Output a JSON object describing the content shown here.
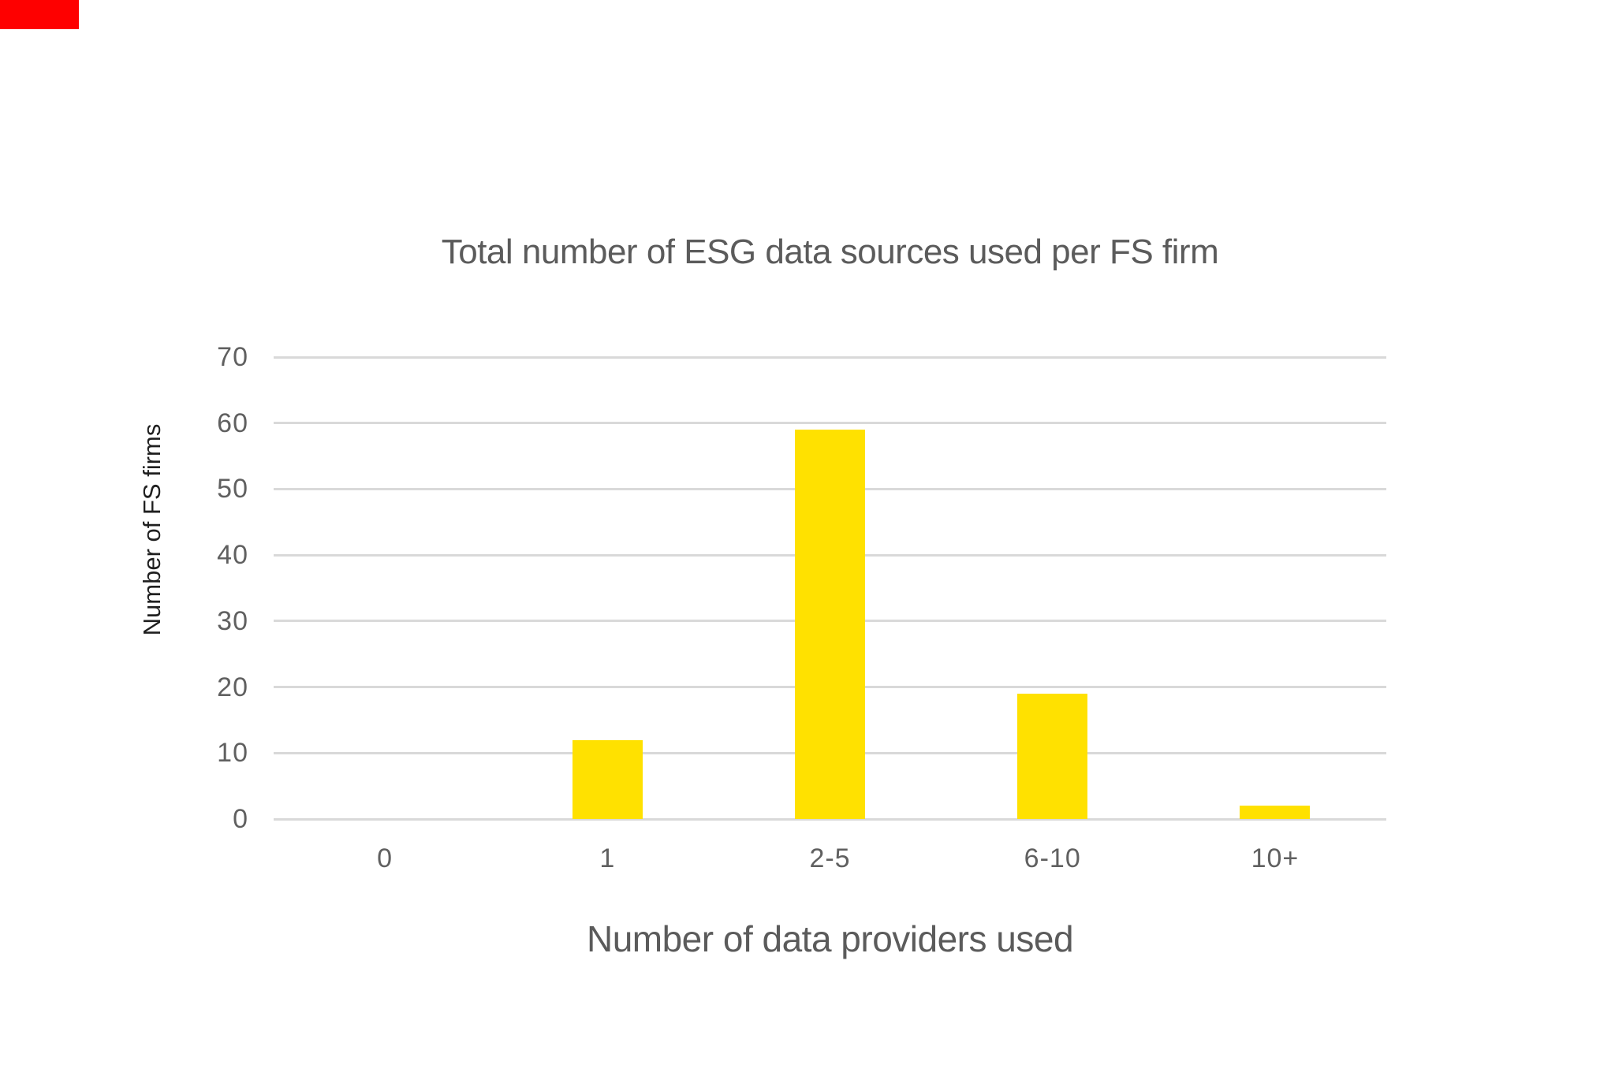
{
  "meta": {
    "background_color": "#ffffff",
    "red_marker_color": "#fe0000",
    "title_color": "#5b5b5b",
    "tick_label_color": "#606060",
    "y_axis_title_color": "#1f1f1f",
    "grid_color": "#d9d9d9"
  },
  "chart_data": {
    "type": "bar",
    "title": "Total number of ESG data sources used per FS firm",
    "xlabel": "Number of data providers used",
    "ylabel": "Number of FS firms",
    "categories": [
      "0",
      "1",
      "2-5",
      "6-10",
      "10+"
    ],
    "values": [
      0,
      12,
      59,
      19,
      2
    ],
    "series": [
      {
        "name": "Number of FS firms",
        "values": [
          0,
          12,
          59,
          19,
          2
        ]
      }
    ],
    "bar_color": "#ffe100",
    "ylim": [
      0,
      70
    ],
    "yticks": [
      70,
      60,
      50,
      40,
      30,
      20,
      10,
      0
    ],
    "grid": "horizontal",
    "legend": "none"
  }
}
